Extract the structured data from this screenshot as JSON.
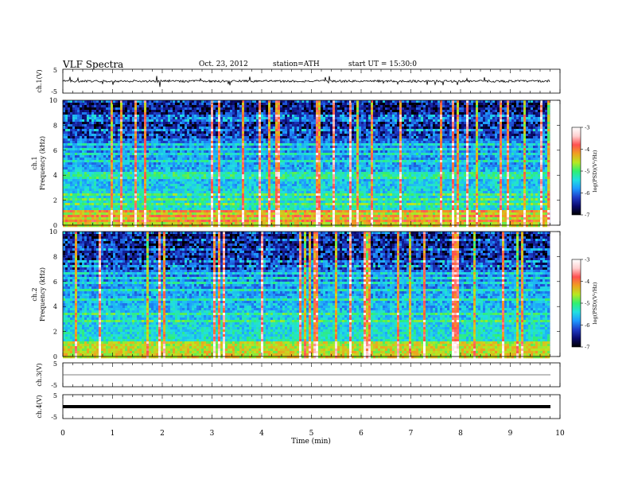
{
  "header": {
    "title": "VLF  Spectra",
    "date": "Oct. 23, 2012",
    "station": "station=ATH",
    "start": "start  UT  =    15:30:0"
  },
  "chart_data": [
    {
      "type": "line",
      "name": "ch1-waveform",
      "ylabel": "ch.1(V)",
      "ylim": [
        -5,
        5
      ],
      "y_ticks": [
        "5",
        "-5"
      ],
      "xlim": [
        0,
        10
      ],
      "baseline_v": 0.0,
      "note_level": "noisy waveform near 0 V with spikes up to about +/-3 V"
    },
    {
      "type": "heatmap",
      "name": "ch1-spectrogram",
      "ylabel": "ch.1\nFrequency  (kHz)",
      "ylim": [
        0,
        10
      ],
      "y_ticks": [
        "0",
        "2",
        "4",
        "6",
        "8",
        "10"
      ],
      "xlim": [
        0,
        9.8
      ],
      "zlim": [
        -7,
        -3
      ],
      "colorbar_label": "log(PSD)(V²/Hz)",
      "colorbar_ticks": [
        "-3",
        "-4",
        "-5",
        "-6",
        "-7"
      ]
    },
    {
      "type": "heatmap",
      "name": "ch2-spectrogram",
      "ylabel": "ch.2\nFrequency  (kHz)",
      "ylim": [
        0,
        10
      ],
      "y_ticks": [
        "0",
        "2",
        "4",
        "6",
        "8",
        "10"
      ],
      "xlim": [
        0,
        9.8
      ],
      "zlim": [
        -7,
        -3
      ],
      "colorbar_label": "log(PSD)(V²/Hz)",
      "colorbar_ticks": [
        "-3",
        "-4",
        "-5",
        "-6",
        "-7"
      ]
    },
    {
      "type": "line",
      "name": "ch3-waveform",
      "ylabel": "ch.3(V)",
      "ylim": [
        -5,
        5
      ],
      "y_ticks": [
        "5",
        "-5"
      ],
      "xlim": [
        0,
        10
      ],
      "baseline_v": 0.0
    },
    {
      "type": "line",
      "name": "ch4-waveform",
      "ylabel": "ch.4(V)",
      "ylim": [
        -5,
        5
      ],
      "y_ticks": [
        "5",
        "-5"
      ],
      "xlim": [
        0,
        10
      ],
      "baseline_v": 0.0
    }
  ],
  "xaxis": {
    "label": "Time  (min)",
    "ticks": [
      "0",
      "1",
      "2",
      "3",
      "4",
      "5",
      "6",
      "7",
      "8",
      "9",
      "10"
    ],
    "range": [
      0,
      10
    ]
  },
  "colors": {
    "colormap": [
      "#000000",
      "#0b0a6e",
      "#1f3cc8",
      "#1e9aff",
      "#20e0e0",
      "#30f070",
      "#b8e820",
      "#f0a020",
      "#ff5050",
      "#ffd0d0",
      "#ffffff"
    ]
  }
}
